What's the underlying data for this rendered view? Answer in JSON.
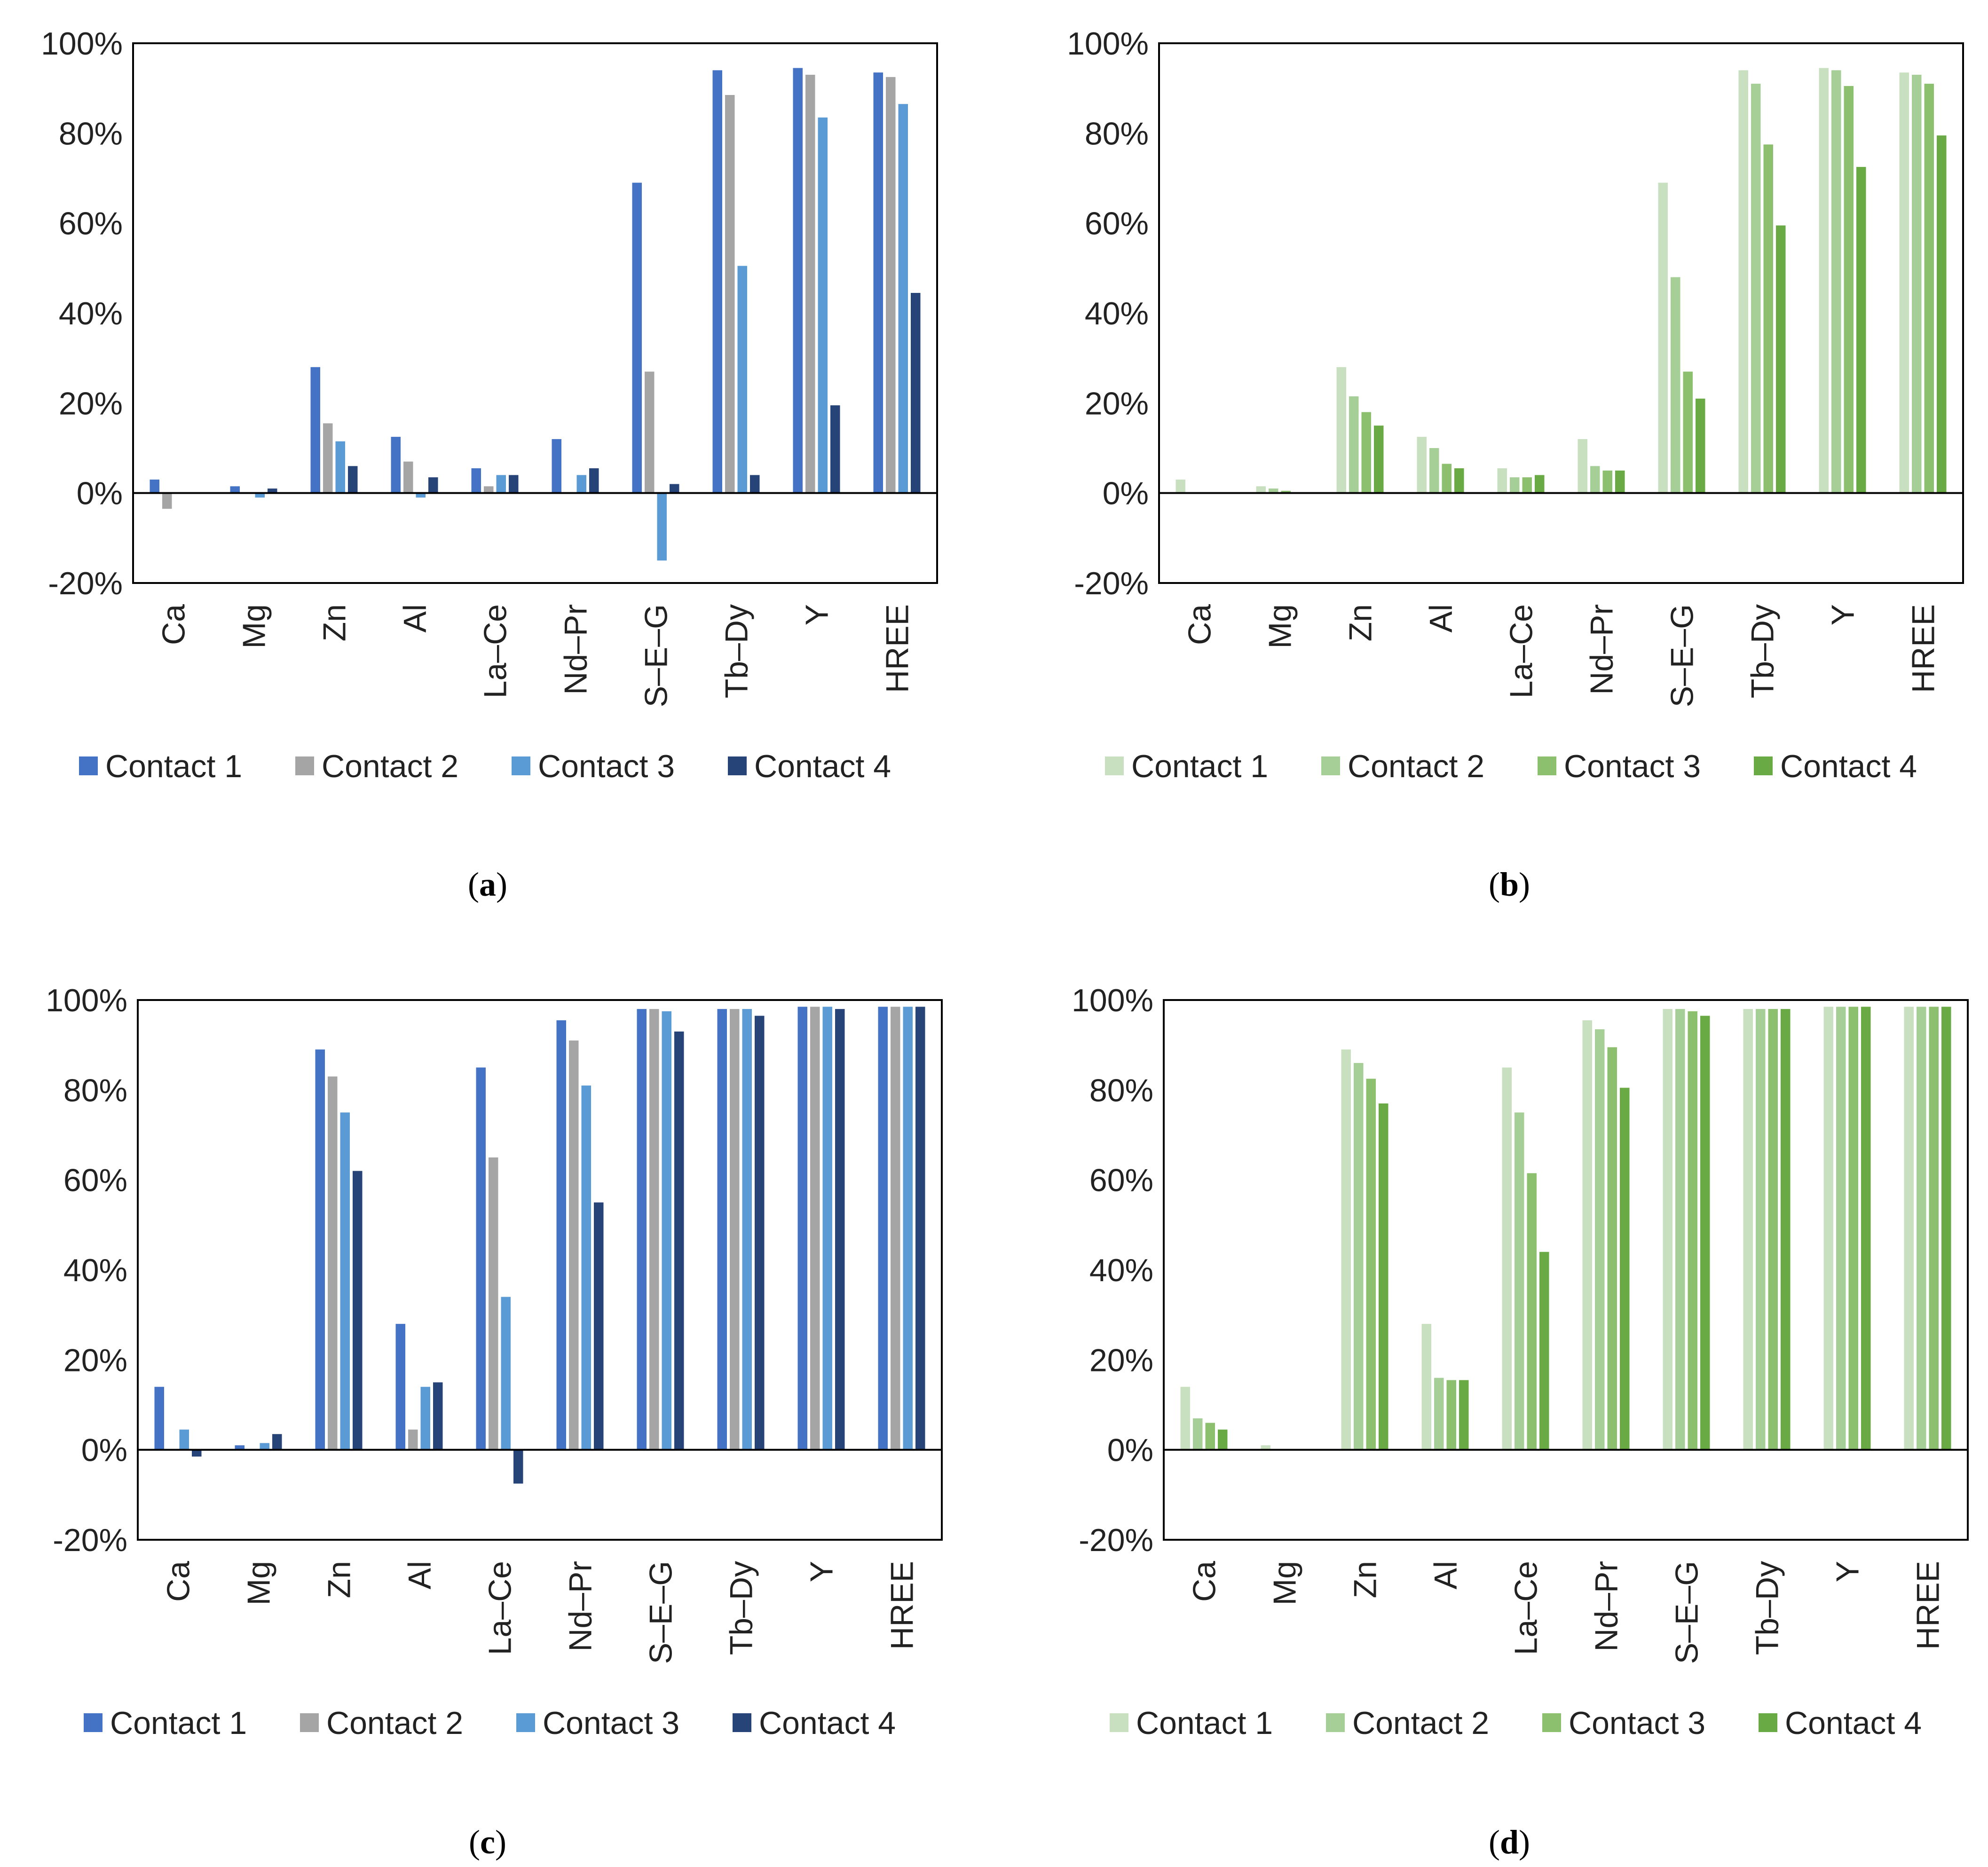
{
  "chart_data": [
    {
      "type": "bar",
      "caption_letter": "a",
      "categories": [
        "Ca",
        "Mg",
        "Zn",
        "Al",
        "La–Ce",
        "Nd–Pr",
        "S–E–G",
        "Tb–Dy",
        "Y",
        "HREE"
      ],
      "ylim": [
        -20,
        100
      ],
      "yticks": [
        "100%",
        "80%",
        "60%",
        "40%",
        "20%",
        "0%",
        "-20%"
      ],
      "ytick_values": [
        100,
        80,
        60,
        40,
        20,
        0,
        -20
      ],
      "colors": [
        "#4472c4",
        "#a5a5a5",
        "#5b9bd5",
        "#264478"
      ],
      "series": [
        {
          "name": "Contact 1",
          "values": [
            3,
            1.5,
            28,
            12.5,
            5.5,
            12,
            69,
            94,
            94.5,
            93.5
          ]
        },
        {
          "name": "Contact 2",
          "values": [
            -3.5,
            0,
            15.5,
            7,
            1.5,
            0,
            27,
            88.5,
            93,
            92.5
          ]
        },
        {
          "name": "Contact 3",
          "values": [
            0,
            -1,
            11.5,
            -1,
            4,
            4,
            -15,
            50.5,
            83.5,
            86.5
          ]
        },
        {
          "name": "Contact 4",
          "values": [
            0,
            1,
            6,
            3.5,
            4,
            5.5,
            2,
            4,
            19.5,
            44.5
          ]
        }
      ]
    },
    {
      "type": "bar",
      "caption_letter": "b",
      "categories": [
        "Ca",
        "Mg",
        "Zn",
        "Al",
        "La–Ce",
        "Nd–Pr",
        "S–E–G",
        "Tb–Dy",
        "Y",
        "HREE"
      ],
      "ylim": [
        -20,
        100
      ],
      "yticks": [
        "100%",
        "80%",
        "60%",
        "40%",
        "20%",
        "0%",
        "-20%"
      ],
      "ytick_values": [
        100,
        80,
        60,
        40,
        20,
        0,
        -20
      ],
      "colors": [
        "#c9e0c0",
        "#a6cf98",
        "#8cc06f",
        "#6aaa45"
      ],
      "series": [
        {
          "name": "Contact 1",
          "values": [
            3,
            1.5,
            28,
            12.5,
            5.5,
            12,
            69,
            94,
            94.5,
            93.5
          ]
        },
        {
          "name": "Contact 2",
          "values": [
            0,
            1,
            21.5,
            10,
            3.5,
            6,
            48,
            91,
            94,
            93
          ]
        },
        {
          "name": "Contact 3",
          "values": [
            0,
            0.5,
            18,
            6.5,
            3.5,
            5,
            27,
            77.5,
            90.5,
            91
          ]
        },
        {
          "name": "Contact 4",
          "values": [
            0,
            0,
            15,
            5.5,
            4,
            5,
            21,
            59.5,
            72.5,
            79.5
          ]
        }
      ]
    },
    {
      "type": "bar",
      "caption_letter": "c",
      "categories": [
        "Ca",
        "Mg",
        "Zn",
        "Al",
        "La–Ce",
        "Nd–Pr",
        "S–E–G",
        "Tb–Dy",
        "Y",
        "HREE"
      ],
      "ylim": [
        -20,
        100
      ],
      "yticks": [
        "100%",
        "80%",
        "60%",
        "40%",
        "20%",
        "0%",
        "-20%"
      ],
      "ytick_values": [
        100,
        80,
        60,
        40,
        20,
        0,
        -20
      ],
      "colors": [
        "#4472c4",
        "#a5a5a5",
        "#5b9bd5",
        "#264478"
      ],
      "series": [
        {
          "name": "Contact 1",
          "values": [
            14,
            1,
            89,
            28,
            85,
            95.5,
            98,
            98,
            98.5,
            98.5
          ]
        },
        {
          "name": "Contact 2",
          "values": [
            0,
            0,
            83,
            4.5,
            65,
            91,
            98,
            98,
            98.5,
            98.5
          ]
        },
        {
          "name": "Contact 3",
          "values": [
            4.5,
            1.5,
            75,
            14,
            34,
            81,
            97.5,
            98,
            98.5,
            98.5
          ]
        },
        {
          "name": "Contact 4",
          "values": [
            -1.5,
            3.5,
            62,
            15,
            -7.5,
            55,
            93,
            96.5,
            98,
            98.5
          ]
        }
      ]
    },
    {
      "type": "bar",
      "caption_letter": "d",
      "categories": [
        "Ca",
        "Mg",
        "Zn",
        "Al",
        "La–Ce",
        "Nd–Pr",
        "S–E–G",
        "Tb–Dy",
        "Y",
        "HREE"
      ],
      "ylim": [
        -20,
        100
      ],
      "yticks": [
        "100%",
        "80%",
        "60%",
        "40%",
        "20%",
        "0%",
        "-20%"
      ],
      "ytick_values": [
        100,
        80,
        60,
        40,
        20,
        0,
        -20
      ],
      "colors": [
        "#c9e0c0",
        "#a6cf98",
        "#8cc06f",
        "#6aaa45"
      ],
      "series": [
        {
          "name": "Contact 1",
          "values": [
            14,
            1,
            89,
            28,
            85,
            95.5,
            98,
            98,
            98.5,
            98.5
          ]
        },
        {
          "name": "Contact 2",
          "values": [
            7,
            0,
            86,
            16,
            75,
            93.5,
            98,
            98,
            98.5,
            98.5
          ]
        },
        {
          "name": "Contact 3",
          "values": [
            6,
            0,
            82.5,
            15.5,
            61.5,
            89.5,
            97.5,
            98,
            98.5,
            98.5
          ]
        },
        {
          "name": "Contact 4",
          "values": [
            4.5,
            0,
            77,
            15.5,
            44,
            80.5,
            96.5,
            98,
            98.5,
            98.5
          ]
        }
      ]
    }
  ]
}
